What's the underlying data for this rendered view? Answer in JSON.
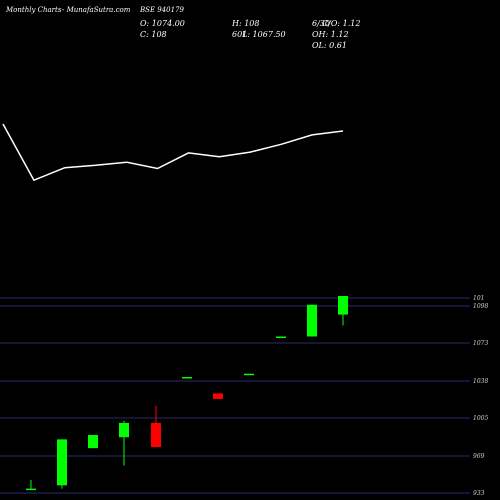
{
  "header": {
    "chart_label": "Monthly Charts",
    "source": "- MunafaSutra.com",
    "symbol": "BSE 940179",
    "open": "O: 1074.00",
    "high": "H: 108",
    "close": "C: 108",
    "low": "L: 1067.50",
    "low_prefix": "601",
    "cd": "C/O: 1.12",
    "cd_prefix": "6/30",
    "oh": "OH: 1.12",
    "ol": "OL: 0.61"
  },
  "colors": {
    "background": "#000000",
    "up": "#00ff00",
    "down": "#ff0000",
    "line": "#ffffff",
    "grid": "#2a2a70",
    "text": "#ffffff"
  },
  "chart_data": [
    {
      "type": "line",
      "title": "",
      "x": [
        0,
        1,
        2,
        3,
        4,
        5,
        6,
        7,
        8,
        9,
        10,
        11
      ],
      "values": [
        1.0,
        0.28,
        0.44,
        0.47,
        0.51,
        0.43,
        0.63,
        0.58,
        0.64,
        0.74,
        0.86,
        0.91
      ]
    },
    {
      "type": "candlestick",
      "title": "",
      "yticks": [
        933,
        969,
        1005,
        1038,
        1073,
        1098,
        101
      ],
      "ylim": [
        930,
        1110
      ],
      "candles": [
        {
          "open": 933,
          "close": 934,
          "high": 942,
          "low": 933
        },
        {
          "open": 937,
          "close": 979,
          "high": 979,
          "low": 934
        },
        {
          "open": 971,
          "close": 983,
          "high": 983,
          "low": 971
        },
        {
          "open": 981,
          "close": 994,
          "high": 996,
          "low": 955
        },
        {
          "open": 994,
          "close": 972,
          "high": 1010,
          "low": 972
        },
        {
          "open": 1035,
          "close": 1036,
          "high": 1036,
          "low": 1035
        },
        {
          "open": 1021,
          "close": 1016,
          "high": 1021,
          "low": 1016
        },
        {
          "open": 1038,
          "close": 1039,
          "high": 1039,
          "low": 1038
        },
        {
          "open": 1072,
          "close": 1073,
          "high": 1073,
          "low": 1072
        },
        {
          "open": 1073,
          "close": 1102,
          "high": 1102,
          "low": 1073
        },
        {
          "open": 1093,
          "close": 1110,
          "high": 1110,
          "low": 1083
        }
      ]
    }
  ]
}
